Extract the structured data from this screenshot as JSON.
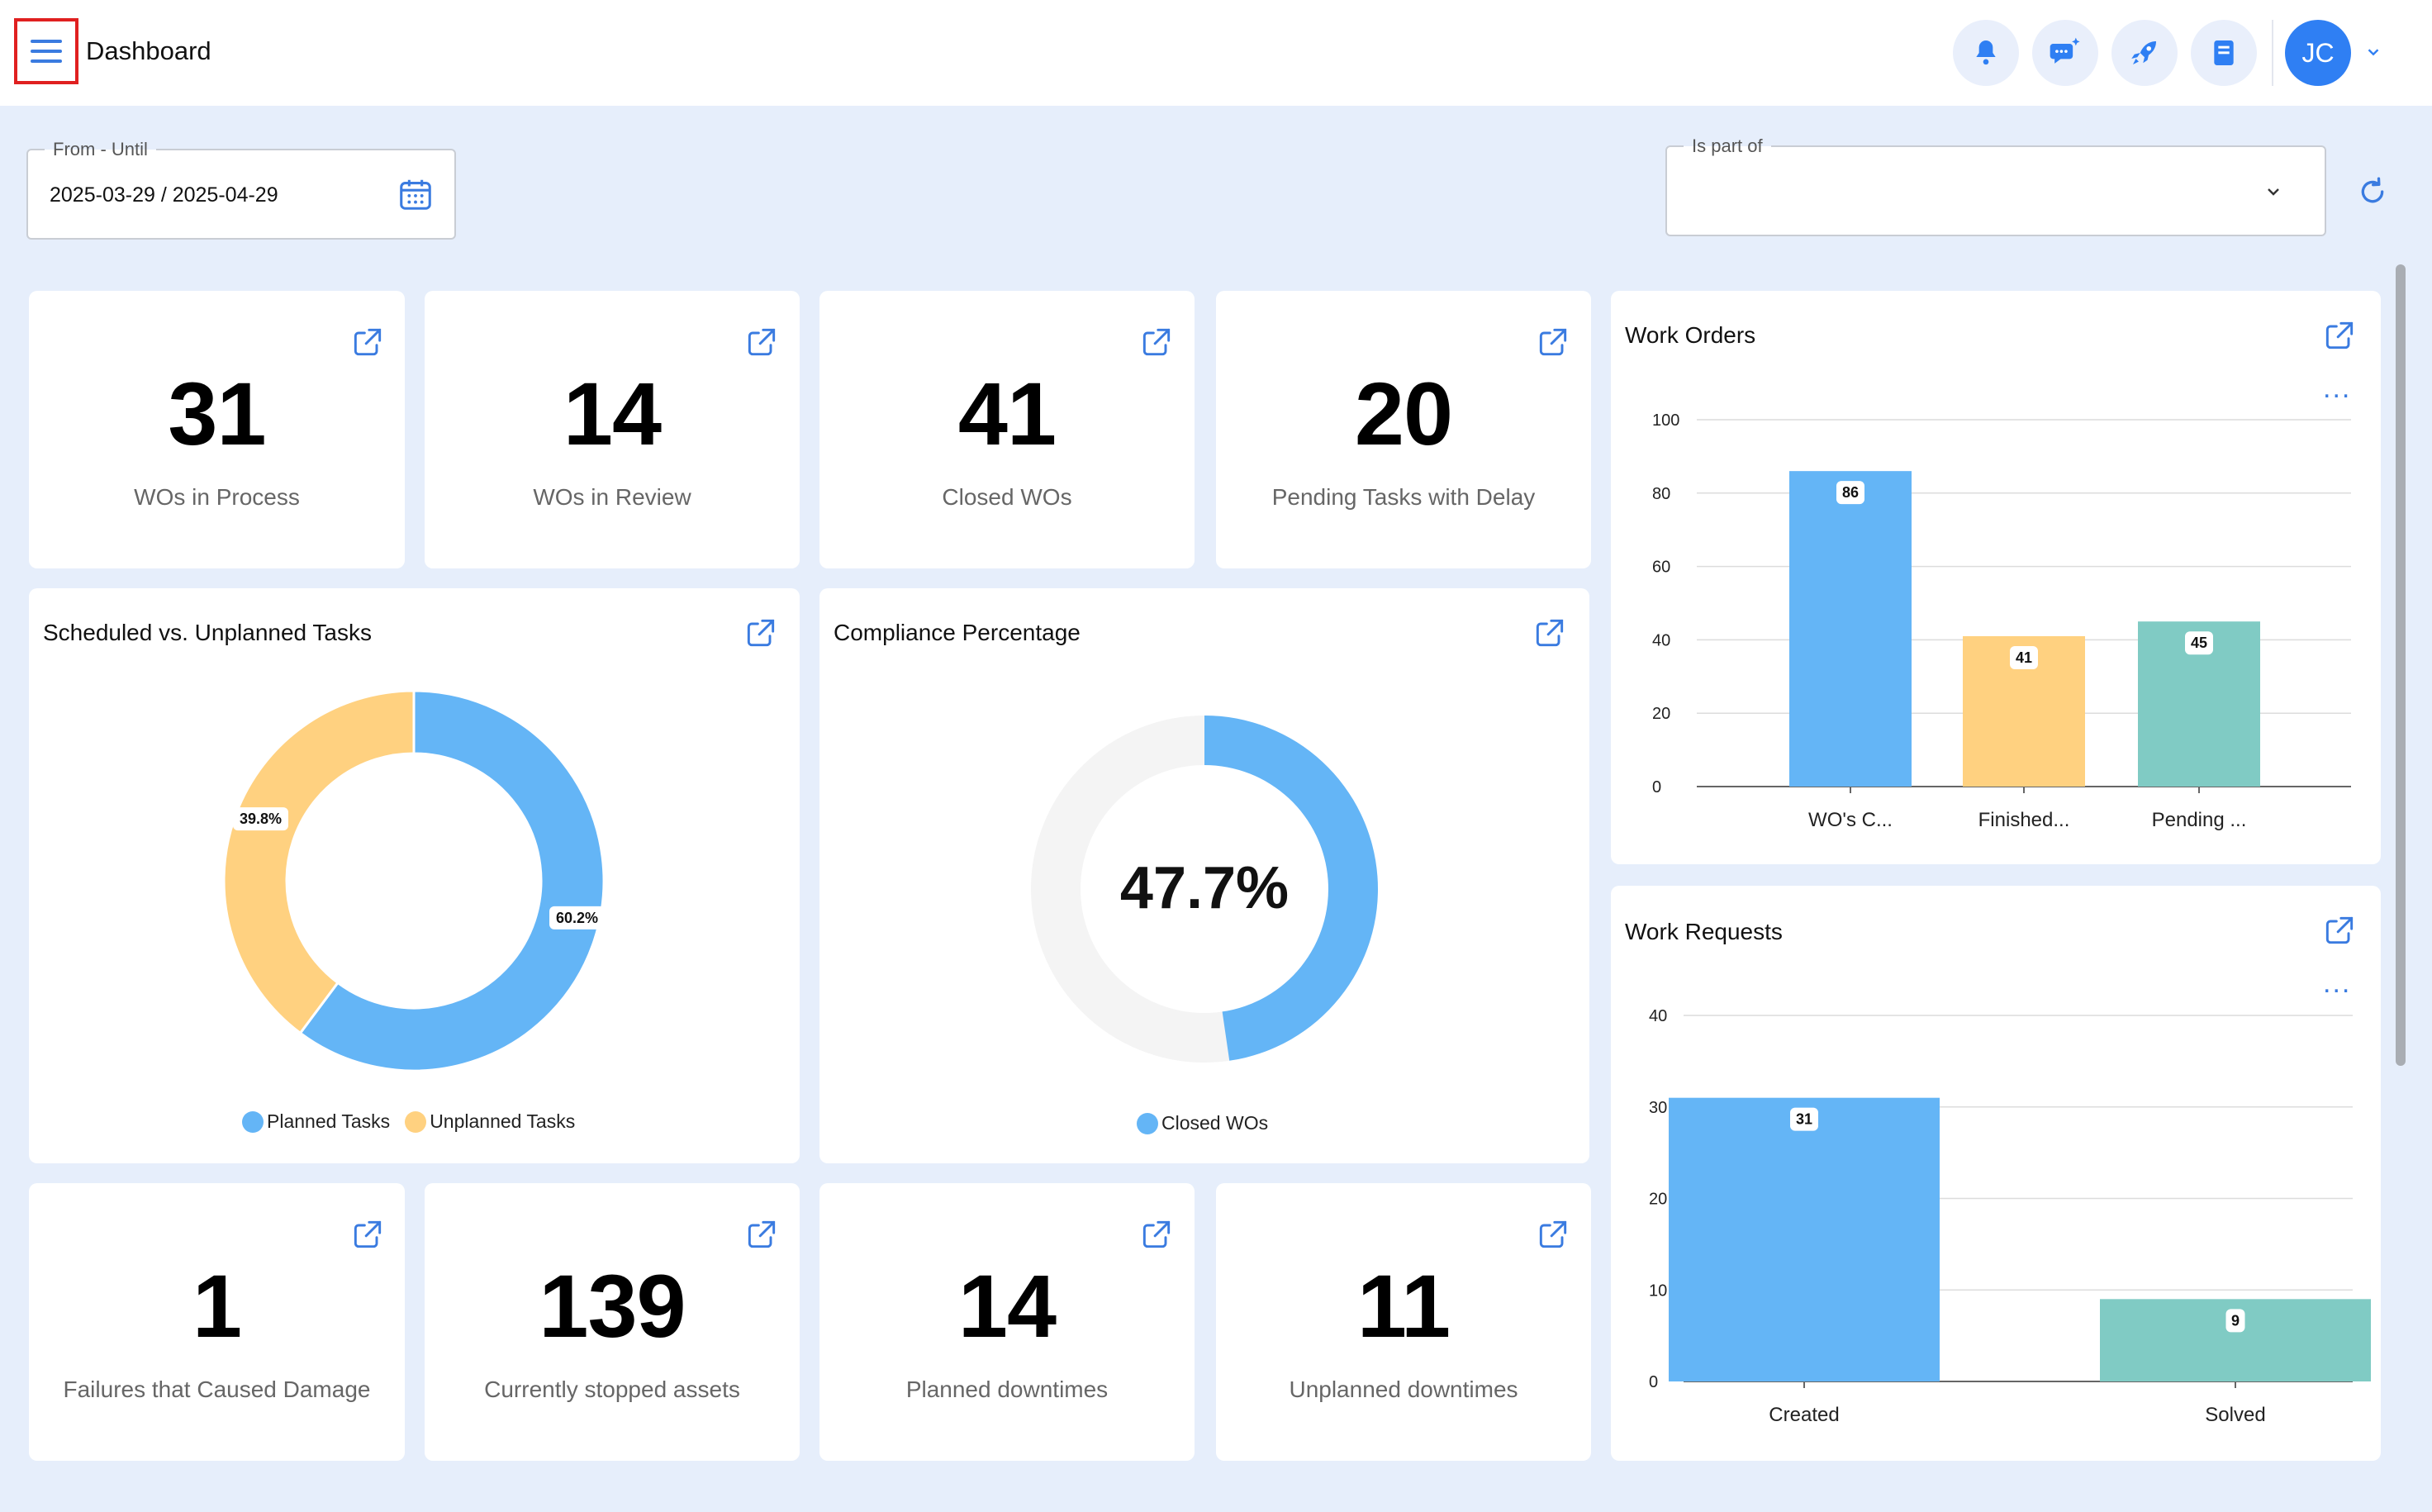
{
  "header": {
    "title": "Dashboard",
    "user_initials": "JC"
  },
  "filters": {
    "date_range": {
      "label": "From - Until",
      "value": "2025-03-29 / 2025-04-29"
    },
    "is_part_of": {
      "label": "Is part of",
      "value": ""
    }
  },
  "kpis": [
    {
      "value": "31",
      "label": "WOs in Process"
    },
    {
      "value": "14",
      "label": "WOs in Review"
    },
    {
      "value": "41",
      "label": "Closed WOs"
    },
    {
      "value": "20",
      "label": "Pending Tasks with Delay"
    },
    {
      "value": "1",
      "label": "Failures that Caused Damage"
    },
    {
      "value": "139",
      "label": "Currently stopped assets"
    },
    {
      "value": "14",
      "label": "Planned downtimes"
    },
    {
      "value": "11",
      "label": "Unplanned downtimes"
    }
  ],
  "scheduled_card": {
    "title": "Scheduled vs. Unplanned Tasks",
    "legend": [
      "Planned Tasks",
      "Unplanned Tasks"
    ]
  },
  "compliance_card": {
    "title": "Compliance Percentage",
    "center_value": "47.7%",
    "legend": [
      "Closed WOs"
    ]
  },
  "work_orders_card": {
    "title": "Work Orders",
    "menu": "..."
  },
  "work_requests_card": {
    "title": "Work Requests",
    "menu": "..."
  },
  "colors": {
    "blue": "#64b5f6",
    "yellow": "#ffd180",
    "teal": "#80cbc4",
    "accent": "#3a7be0",
    "track": "#f4f4f4"
  },
  "chart_data": [
    {
      "type": "pie",
      "title": "Scheduled vs. Unplanned Tasks",
      "labels": [
        "Planned Tasks",
        "Unplanned Tasks"
      ],
      "values": [
        60.2,
        39.8
      ],
      "value_labels": [
        "60.2%",
        "39.8%"
      ],
      "legend_position": "bottom"
    },
    {
      "type": "pie",
      "title": "Compliance Percentage",
      "labels": [
        "Closed WOs"
      ],
      "values": [
        47.7
      ],
      "value_labels": [
        "47.7%"
      ],
      "legend_position": "bottom"
    },
    {
      "type": "bar",
      "title": "Work Orders",
      "categories": [
        "WO's C...",
        "Finished...",
        "Pending ..."
      ],
      "values": [
        86,
        41,
        45
      ],
      "bar_colors": [
        "#64b5f6",
        "#ffd180",
        "#80cbc4"
      ],
      "yticks": [
        "0",
        "20",
        "40",
        "60",
        "80",
        "100"
      ],
      "ylim": [
        0,
        100
      ],
      "grid": true
    },
    {
      "type": "bar",
      "title": "Work Requests",
      "categories": [
        "Created",
        "Solved"
      ],
      "values": [
        31,
        9
      ],
      "bar_colors": [
        "#64b5f6",
        "#80cbc4"
      ],
      "yticks": [
        "0",
        "10",
        "20",
        "30",
        "40"
      ],
      "ylim": [
        0,
        40
      ],
      "grid": true
    }
  ]
}
